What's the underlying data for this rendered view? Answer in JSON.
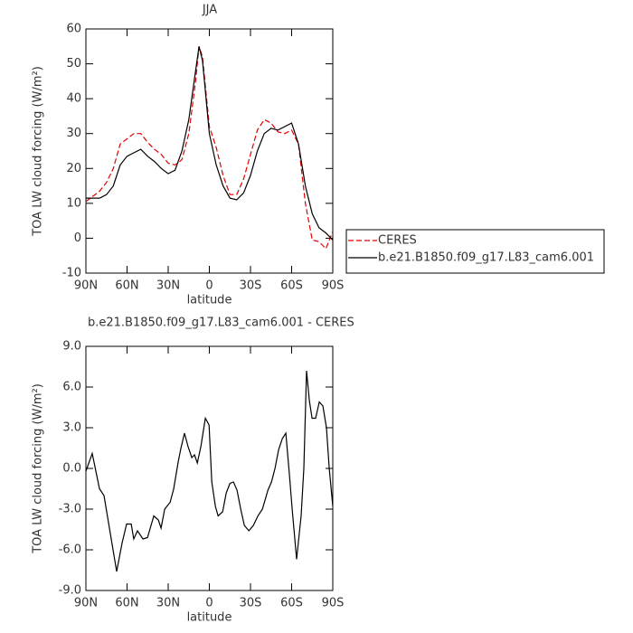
{
  "chart_data": [
    {
      "type": "line",
      "title": "JJA",
      "xlabel": "latitude",
      "ylabel": "TOA LW cloud forcing (W/m²)",
      "x": [
        90,
        85,
        80,
        75,
        70,
        65,
        60,
        55,
        50,
        45,
        40,
        35,
        30,
        25,
        20,
        15,
        10,
        7.5,
        5,
        0,
        -5,
        -10,
        -15,
        -20,
        -25,
        -30,
        -35,
        -40,
        -45,
        -50,
        -55,
        -60,
        -65,
        -70,
        -75,
        -80,
        -85,
        -90
      ],
      "series": [
        {
          "name": "CERES",
          "color": "#e00000",
          "dashed": true,
          "values": [
            10.5,
            12,
            13.5,
            16,
            20,
            27,
            28.5,
            30,
            30,
            27.5,
            25.5,
            24,
            21.5,
            21,
            22.5,
            30,
            45,
            55,
            52,
            32,
            26,
            18,
            12.5,
            12.5,
            17,
            24,
            31,
            34,
            33,
            30.5,
            30,
            31,
            27,
            10,
            -0.5,
            -1,
            -3,
            2
          ]
        },
        {
          "name": "b.e21.B1850.f09_g17.L83_cam6.001",
          "color": "#000000",
          "dashed": false,
          "values": [
            11.5,
            11.5,
            11.5,
            12.5,
            15,
            21,
            23.5,
            24.5,
            25.5,
            23.5,
            22,
            20,
            18.5,
            19.5,
            25,
            34,
            48,
            55,
            51,
            30,
            21,
            15,
            11.5,
            11,
            13,
            18,
            25,
            30,
            31.5,
            31,
            32,
            33,
            27,
            15,
            7,
            3,
            1.5,
            -0.5
          ]
        }
      ],
      "xlim": [
        90,
        -90
      ],
      "xticks": [
        {
          "value": 90,
          "label": "90N"
        },
        {
          "value": 60,
          "label": "60N"
        },
        {
          "value": 30,
          "label": "30N"
        },
        0,
        {
          "value": -30,
          "label": "30S"
        },
        {
          "value": -60,
          "label": "60S"
        },
        {
          "value": -90,
          "label": "90S"
        }
      ],
      "ylim": [
        -10,
        60
      ],
      "yticks": [
        -10,
        0,
        10,
        20,
        30,
        40,
        50,
        60
      ],
      "legend": "right"
    },
    {
      "type": "line",
      "title": "b.e21.B1850.f09_g17.L83_cam6.001 - CERES",
      "xlabel": "latitude",
      "ylabel": "TOA LW cloud forcing (W/m²)",
      "x": [
        90,
        85.4,
        80.1,
        76.8,
        73.5,
        70.2,
        67.6,
        63.6,
        60.3,
        57,
        55.1,
        52.4,
        48.4,
        45.1,
        40.5,
        37.2,
        35.2,
        32.6,
        28.6,
        26,
        22.7,
        20.7,
        18.1,
        15.5,
        12.8,
        10.8,
        8.8,
        6.2,
        2.9,
        0.2,
        -1.8,
        -4.4,
        -6.4,
        -9.7,
        -12.3,
        -15,
        -17.6,
        -20.2,
        -22.9,
        -25.5,
        -28.8,
        -32.1,
        -35.4,
        -38.7,
        -42.7,
        -45.3,
        -47.9,
        -50.6,
        -53.2,
        -55.8,
        -58.4,
        -60.4,
        -63.6,
        -66.9,
        -68.9,
        -70.9,
        -72.9,
        -74.9,
        -77.5,
        -80.2,
        -82.8,
        -85.4,
        -87.4,
        -90
      ],
      "series": [
        {
          "color": "#000000",
          "dashed": false,
          "values": [
            -0.2,
            1.1,
            -1.5,
            -2,
            -4,
            -6,
            -7.6,
            -5.5,
            -4.1,
            -4.1,
            -5.2,
            -4.6,
            -5.2,
            -5.1,
            -3.5,
            -3.8,
            -4.4,
            -3,
            -2.5,
            -1.5,
            0.5,
            1.5,
            2.6,
            1.6,
            0.8,
            1,
            0.4,
            1.6,
            3.7,
            3.2,
            -1,
            -2.8,
            -3.5,
            -3.2,
            -1.8,
            -1.1,
            -1,
            -1.6,
            -3,
            -4.2,
            -4.6,
            -4.2,
            -3.5,
            -3,
            -1.6,
            -1,
            0,
            1.4,
            2.2,
            2.6,
            -0.5,
            -3,
            -6.7,
            -3.5,
            0,
            7.2,
            5,
            3.7,
            3.7,
            4.9,
            4.6,
            3,
            0,
            -2.8
          ]
        }
      ],
      "xlim": [
        90,
        -90
      ],
      "xticks": [
        {
          "value": 90,
          "label": "90N"
        },
        {
          "value": 60,
          "label": "60N"
        },
        {
          "value": 30,
          "label": "30N"
        },
        0,
        {
          "value": -30,
          "label": "30S"
        },
        {
          "value": -60,
          "label": "60S"
        },
        {
          "value": -90,
          "label": "90S"
        }
      ],
      "ylim": [
        -9,
        9
      ],
      "yticks": [
        {
          "value": -9,
          "label": "-9.0"
        },
        {
          "value": -6,
          "label": "-6.0"
        },
        {
          "value": -3,
          "label": "-3.0"
        },
        {
          "value": 0,
          "label": "0.0"
        },
        {
          "value": 3,
          "label": "3.0"
        },
        {
          "value": 6,
          "label": "6.0"
        },
        {
          "value": 9,
          "label": "9.0"
        }
      ]
    }
  ]
}
